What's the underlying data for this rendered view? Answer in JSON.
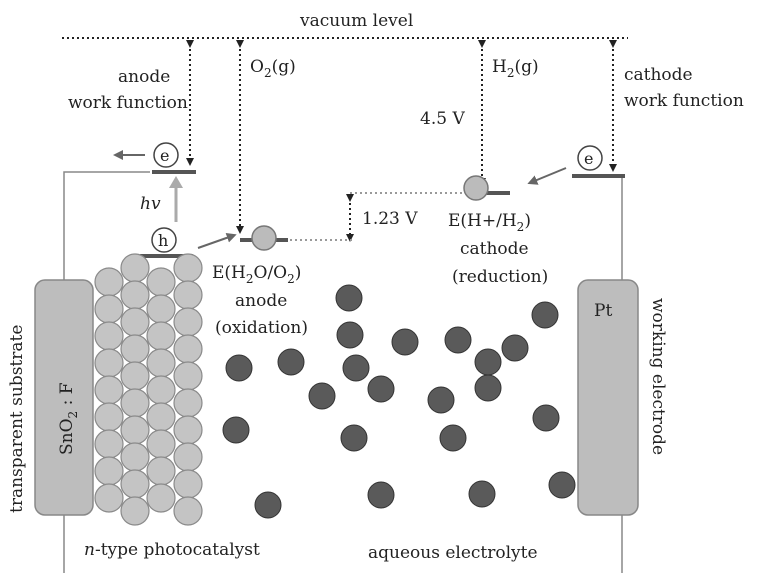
{
  "labels": {
    "vacuum_level": "vacuum level",
    "anode": "anode",
    "anode_work_function": "work function",
    "cathode": "cathode",
    "cathode_work_function": "work function",
    "o2_main": "O",
    "o2_sub": "2",
    "o2_tail": "(g)",
    "h2_main": "H",
    "h2_sub": "2",
    "h2_tail": "(g)",
    "voltage_45": "4.5 V",
    "voltage_123": "1.23 V",
    "electron": "e",
    "hole": "h",
    "hv": "hv",
    "e_h2o_a": "E(H",
    "e_h2o_sub1": "2",
    "e_h2o_b": "O/O",
    "e_h2o_sub2": "2",
    "e_h2o_c": ")",
    "anode_label": "anode",
    "oxidation": "(oxidation)",
    "e_h_a": "E(H+/H",
    "e_h_sub": "2",
    "e_h_c": ")",
    "cathode_label": "cathode",
    "reduction": "(reduction)",
    "sno2_a": "SnO",
    "sno2_sub": "2",
    "sno2_b": " : F",
    "pt": "Pt",
    "transparent_substrate": "transparent substrate",
    "working_electrode": "working electrode",
    "ntype_italic": "n",
    "ntype_rest": "-type photocatalyst",
    "aqueous_electrolyte": "aqueous electrolyte"
  },
  "colors": {
    "ink": "#222222",
    "particle_fill": "#c4c4c4",
    "particle_stroke": "#8a8a8a",
    "ion_fill": "#5a5a5a",
    "ion_stroke": "#333333",
    "electrode_fill": "#bdbdbd",
    "level_bar": "#555555",
    "arrow_light": "#aaaaaa",
    "arrow_dark": "#666666"
  }
}
